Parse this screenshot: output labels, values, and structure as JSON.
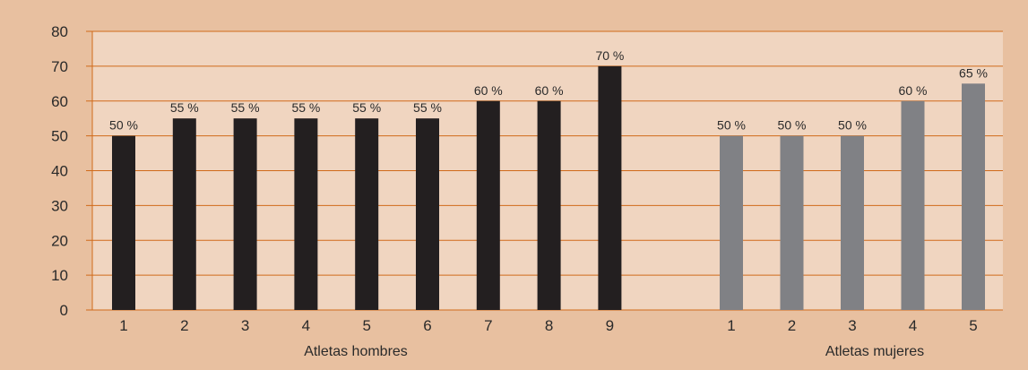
{
  "chart_data": {
    "type": "bar",
    "ylim": [
      0,
      80
    ],
    "yticks": [
      "0",
      "10",
      "20",
      "30",
      "40",
      "50",
      "60",
      "70",
      "80"
    ],
    "grid": true,
    "colors": {
      "background": "#e8c0a0",
      "plot": "#f0d5c0",
      "grid": "#d06a1a",
      "series_men": "#231f20",
      "series_women": "#808185"
    },
    "groups": [
      {
        "label": "Atletas hombres",
        "categories": [
          "1",
          "2",
          "3",
          "4",
          "5",
          "6",
          "7",
          "8",
          "9"
        ],
        "values": [
          50,
          55,
          55,
          55,
          55,
          55,
          60,
          60,
          70
        ],
        "labels": [
          "50 %",
          "55 %",
          "55 %",
          "55 %",
          "55 %",
          "55 %",
          "60 %",
          "60 %",
          "70 %"
        ]
      },
      {
        "label": "Atletas mujeres",
        "categories": [
          "1",
          "2",
          "3",
          "4",
          "5"
        ],
        "values": [
          50,
          50,
          50,
          60,
          65
        ],
        "labels": [
          "50 %",
          "50 %",
          "50 %",
          "60 %",
          "65 %"
        ]
      }
    ]
  }
}
